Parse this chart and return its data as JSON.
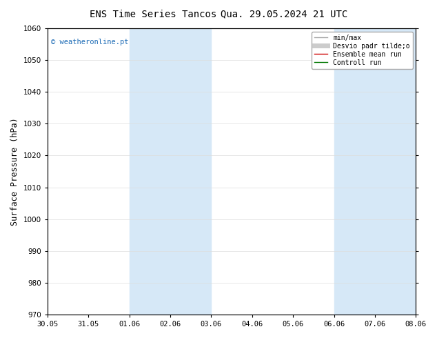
{
  "title_left": "ENS Time Series Tancos",
  "title_right": "Qua. 29.05.2024 21 UTC",
  "ylabel": "Surface Pressure (hPa)",
  "ylim": [
    970,
    1060
  ],
  "yticks": [
    970,
    980,
    990,
    1000,
    1010,
    1020,
    1030,
    1040,
    1050,
    1060
  ],
  "date_start": "2024-05-30",
  "date_end": "2024-06-08",
  "xlabels": [
    "30.05",
    "31.05",
    "01.06",
    "02.06",
    "03.06",
    "04.06",
    "05.06",
    "06.06",
    "07.06",
    "08.06"
  ],
  "background_color": "#ffffff",
  "plot_bg_color": "#ffffff",
  "shaded_bands": [
    [
      "2024-06-01",
      "2024-06-03"
    ],
    [
      "2024-06-06",
      "2024-06-08"
    ]
  ],
  "shade_color": "#d6e8f7",
  "watermark": "© weatheronline.pt",
  "watermark_color": "#1a6ab5",
  "legend_entries": [
    {
      "label": "min/max",
      "color": "#aaaaaa",
      "lw": 1.0,
      "style": "-"
    },
    {
      "label": "Desvio padr tilde;o",
      "color": "#cccccc",
      "lw": 5,
      "style": "-"
    },
    {
      "label": "Ensemble mean run",
      "color": "#cc0000",
      "lw": 1.0,
      "style": "-"
    },
    {
      "label": "Controll run",
      "color": "#007700",
      "lw": 1.0,
      "style": "-"
    }
  ],
  "title_fontsize": 10,
  "tick_fontsize": 7.5,
  "ylabel_fontsize": 8.5,
  "legend_fontsize": 7
}
